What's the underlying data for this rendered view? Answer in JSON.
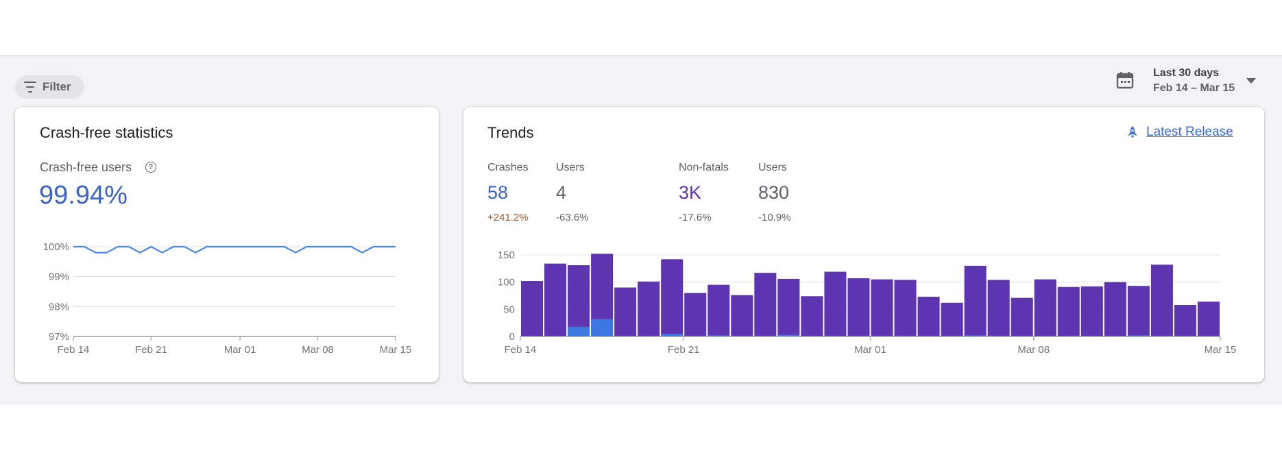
{
  "filter": {
    "label": "Filter"
  },
  "date_range": {
    "title": "Last 30 days",
    "dates": "Feb 14 – Mar 15"
  },
  "crash_free": {
    "title": "Crash-free statistics",
    "metric_label": "Crash-free users",
    "metric_value": "99.94%"
  },
  "trends": {
    "title": "Trends",
    "latest_release_label": "Latest Release",
    "stats": [
      {
        "label": "Crashes",
        "value": "58",
        "change": "+241.2%"
      },
      {
        "label": "Users",
        "value": "4",
        "change": "-63.6%"
      },
      {
        "label": "Non-fatals",
        "value": "3K",
        "change": "-17.6%"
      },
      {
        "label": "Users",
        "value": "830",
        "change": "-10.9%"
      }
    ]
  },
  "colors": {
    "accent_blue": "#3b62c8",
    "nonfatal_purple": "#5e35b1",
    "crash_blue": "#3c78e0",
    "line_blue": "#4a86e8",
    "change_up": "#a05a2c",
    "change_neutral": "#5f6368"
  },
  "chart_data": [
    {
      "type": "line",
      "title": "",
      "xlabel": "",
      "ylabel": "",
      "ylim": [
        97,
        100
      ],
      "y_ticks": [
        "100%",
        "99%",
        "98%",
        "97%"
      ],
      "x_ticks": [
        "Feb 14",
        "Feb 21",
        "Mar 01",
        "Mar 08",
        "Mar 15"
      ],
      "grid": true,
      "series": [
        {
          "values": [
            100,
            100,
            99.8,
            99.8,
            100,
            100,
            99.8,
            100,
            99.8,
            100,
            100,
            99.8,
            100,
            100,
            100,
            100,
            100,
            100,
            100,
            100,
            99.8,
            100,
            100,
            100,
            100,
            100,
            99.8,
            100,
            100,
            100
          ]
        }
      ]
    },
    {
      "type": "bar",
      "title": "",
      "xlabel": "",
      "ylabel": "",
      "ylim": [
        0,
        155
      ],
      "y_ticks": [
        "150",
        "100",
        "50",
        "0"
      ],
      "x_ticks": [
        "Feb 14",
        "Feb 21",
        "Mar 01",
        "Mar 08",
        "Mar 15"
      ],
      "grid": true,
      "series": [
        {
          "values": [
            102,
            134,
            131,
            152,
            90,
            101,
            142,
            80,
            95,
            76,
            117,
            106,
            74,
            119,
            107,
            105,
            104,
            73,
            62,
            130,
            104,
            71,
            105,
            91,
            92,
            100,
            93,
            132,
            58,
            64
          ]
        },
        {
          "values": [
            0,
            0,
            18,
            32,
            0,
            0,
            5,
            0,
            2,
            0,
            0,
            3,
            0,
            0,
            0,
            0,
            0,
            0,
            0,
            2,
            0,
            0,
            0,
            0,
            0,
            0,
            2,
            0,
            0,
            0
          ]
        }
      ]
    }
  ]
}
